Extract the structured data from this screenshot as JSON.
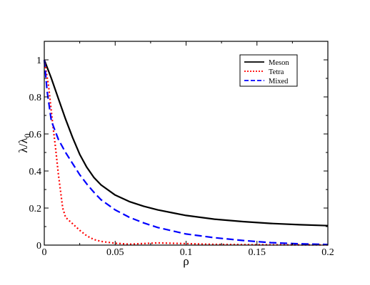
{
  "chart_data": {
    "type": "line",
    "xlabel": "ρ",
    "ylabel_main": "λ/λ",
    "ylabel_sub": "0",
    "xlim": [
      0,
      0.2
    ],
    "ylim": [
      0,
      1.1
    ],
    "xticks": [
      0,
      0.05,
      0.1,
      0.15,
      0.2
    ],
    "xtick_labels": [
      "0",
      "0.05",
      "0.1",
      "0.15",
      "0.2"
    ],
    "yticks": [
      0,
      0.2,
      0.4,
      0.6,
      0.8,
      1.0
    ],
    "ytick_labels": [
      "0",
      "0.2",
      "0.4",
      "0.6",
      "0.8",
      "1"
    ],
    "grid": false,
    "legend_position": "top-right",
    "series": [
      {
        "name": "Meson",
        "color": "#000000",
        "dash": "solid",
        "x": [
          0,
          0.005,
          0.01,
          0.015,
          0.02,
          0.025,
          0.03,
          0.035,
          0.04,
          0.05,
          0.06,
          0.07,
          0.08,
          0.09,
          0.1,
          0.12,
          0.14,
          0.16,
          0.18,
          0.2
        ],
        "y": [
          1.0,
          0.9,
          0.79,
          0.68,
          0.58,
          0.49,
          0.42,
          0.365,
          0.325,
          0.27,
          0.235,
          0.21,
          0.19,
          0.175,
          0.16,
          0.14,
          0.127,
          0.117,
          0.11,
          0.105
        ]
      },
      {
        "name": "Tetra",
        "color": "#ff0000",
        "dash": "dotted",
        "x": [
          0,
          0.003,
          0.006,
          0.008,
          0.01,
          0.013,
          0.015,
          0.02,
          0.025,
          0.03,
          0.035,
          0.04,
          0.05,
          0.06,
          0.08,
          0.1,
          0.12,
          0.15,
          0.2
        ],
        "y": [
          1.0,
          0.86,
          0.65,
          0.52,
          0.38,
          0.2,
          0.15,
          0.115,
          0.08,
          0.05,
          0.03,
          0.02,
          0.01,
          0.005,
          0.012,
          0.008,
          0.004,
          0.002,
          0.001
        ]
      },
      {
        "name": "Mixed",
        "color": "#0000ff",
        "dash": "dashed",
        "x": [
          0,
          0.002,
          0.005,
          0.01,
          0.015,
          0.02,
          0.025,
          0.03,
          0.035,
          0.04,
          0.05,
          0.06,
          0.07,
          0.08,
          0.1,
          0.12,
          0.14,
          0.16,
          0.18,
          0.2
        ],
        "y": [
          1.0,
          0.83,
          0.67,
          0.57,
          0.5,
          0.44,
          0.38,
          0.33,
          0.285,
          0.245,
          0.19,
          0.15,
          0.12,
          0.095,
          0.06,
          0.04,
          0.025,
          0.013,
          0.007,
          0.003
        ]
      }
    ]
  }
}
